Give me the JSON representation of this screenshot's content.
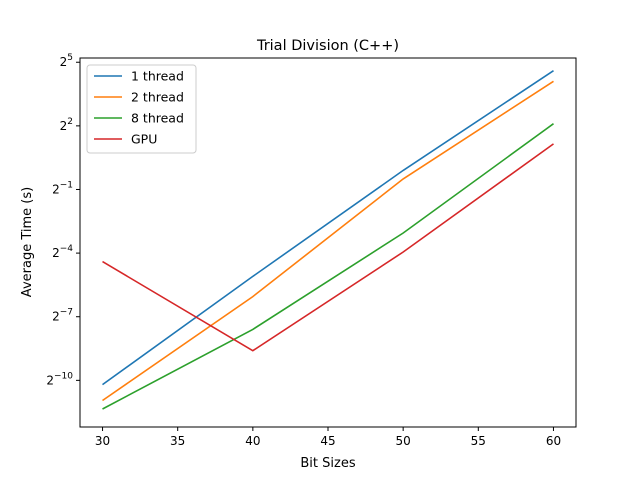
{
  "chart_data": {
    "type": "line",
    "title": "Trial Division (C++)",
    "xlabel": "Bit Sizes",
    "ylabel": "Average Time (s)",
    "x": [
      30,
      40,
      50,
      60
    ],
    "xlim": [
      28.5,
      61.5
    ],
    "xticks": [
      30,
      35,
      40,
      45,
      50,
      55,
      60
    ],
    "yscale": "log2",
    "ylim_exp": [
      -12.2,
      5.2
    ],
    "ytick_base": "2",
    "ytick_exponents": [
      "5",
      "2",
      "−1",
      "−4",
      "−7",
      "−10"
    ],
    "grid": false,
    "legend_position": "upper-left",
    "series": [
      {
        "name": "1 thread",
        "color": "#1f77b4",
        "log2_values": [
          -10.2,
          -5.1,
          -0.1,
          4.6
        ]
      },
      {
        "name": "2 thread",
        "color": "#ff7f0e",
        "log2_values": [
          -10.95,
          -6.05,
          -0.5,
          4.1
        ]
      },
      {
        "name": "8 thread",
        "color": "#2ca02c",
        "log2_values": [
          -11.35,
          -7.6,
          -3.05,
          2.1
        ]
      },
      {
        "name": "GPU",
        "color": "#d62728",
        "log2_values": [
          -4.4,
          -8.6,
          -3.95,
          1.15
        ]
      }
    ]
  }
}
